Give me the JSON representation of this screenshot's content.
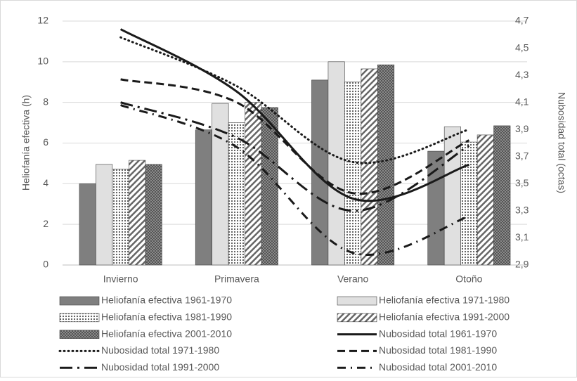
{
  "chart_data": {
    "type": "bar_line",
    "y_label": "Heliofanía efectiva (h)",
    "y2_label": "Nubosidad total (octas)",
    "categories": [
      "Invierno",
      "Primavera",
      "Verano",
      "Otoño"
    ],
    "ylim": [
      0,
      12
    ],
    "yticks": [
      0,
      2,
      4,
      6,
      8,
      10,
      12
    ],
    "y2lim": [
      2.9,
      4.7
    ],
    "y2ticks": [
      {
        "value": 2.9,
        "label": "2,9"
      },
      {
        "value": 3.1,
        "label": "3,1"
      },
      {
        "value": 3.3,
        "label": "3,3"
      },
      {
        "value": 3.5,
        "label": "3,5"
      },
      {
        "value": 3.7,
        "label": "3,7"
      },
      {
        "value": 3.9,
        "label": "3,9"
      },
      {
        "value": 4.1,
        "label": "4,1"
      },
      {
        "value": 4.3,
        "label": "4,3"
      },
      {
        "value": 4.5,
        "label": "4,5"
      },
      {
        "value": 4.7,
        "label": "4,7"
      }
    ],
    "grid": true,
    "legend": "bottom",
    "series": [
      {
        "name": "Heliofanía efectiva 1961-1970",
        "type": "bar",
        "color": "#7f7f7f",
        "pattern": "solid",
        "values": [
          4.0,
          6.65,
          9.1,
          5.6
        ]
      },
      {
        "name": "Heliofanía efectiva 1971-1980",
        "type": "bar",
        "color": "#e0e0e0",
        "pattern": "solid",
        "values": [
          4.95,
          7.95,
          10.0,
          6.8
        ]
      },
      {
        "name": "Heliofanía efectiva 1981-1990",
        "type": "bar",
        "color": "#7f7f7f",
        "pattern": "dots",
        "values": [
          4.72,
          7.0,
          9.0,
          6.05
        ]
      },
      {
        "name": "Heliofanía efectiva 1991-2000",
        "type": "bar",
        "color": "#7f7f7f",
        "pattern": "diagonal",
        "values": [
          5.15,
          8.0,
          9.65,
          6.4
        ]
      },
      {
        "name": "Heliofanía efectiva 2001-2010",
        "type": "bar",
        "color": "#7f7f7f",
        "pattern": "crosshatch",
        "values": [
          4.95,
          7.75,
          9.85,
          6.85
        ]
      },
      {
        "name": "Nubosidad total 1961-1970",
        "type": "line",
        "axis": "y2",
        "color": "#1a1a1a",
        "dash": "solid",
        "values": [
          4.64,
          4.18,
          3.39,
          3.64
        ]
      },
      {
        "name": "Nubosidad total 1971-1980",
        "type": "line",
        "axis": "y2",
        "color": "#1a1a1a",
        "dash": "dotted",
        "values": [
          4.58,
          4.22,
          3.66,
          3.9
        ]
      },
      {
        "name": "Nubosidad total 1981-1990",
        "type": "line",
        "axis": "y2",
        "color": "#1a1a1a",
        "dash": "dashed",
        "values": [
          4.27,
          4.1,
          3.43,
          3.82
        ]
      },
      {
        "name": "Nubosidad total 1991-2000",
        "type": "line",
        "axis": "y2",
        "color": "#1a1a1a",
        "dash": "longdashdot",
        "values": [
          4.1,
          3.84,
          3.3,
          3.78
        ]
      },
      {
        "name": "Nubosidad total 2001-2010",
        "type": "line",
        "axis": "y2",
        "color": "#1a1a1a",
        "dash": "dashdot",
        "values": [
          4.08,
          3.77,
          2.99,
          3.26
        ]
      }
    ]
  }
}
